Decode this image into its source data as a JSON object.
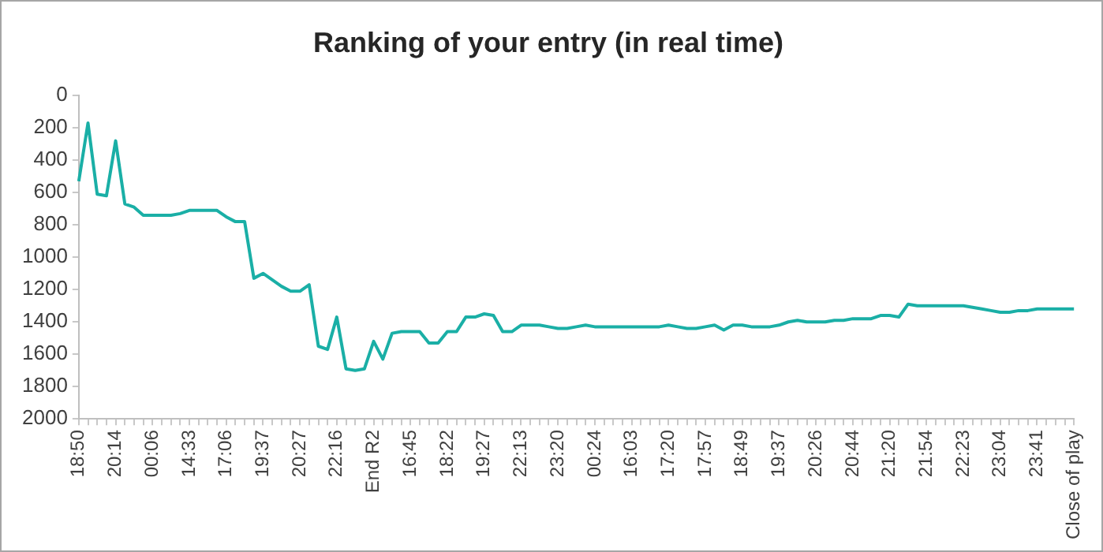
{
  "chart_data": {
    "type": "line",
    "title": "Ranking of your entry (in real time)",
    "categories": [
      "18:50",
      null,
      null,
      null,
      "20:14",
      null,
      null,
      null,
      "00:06",
      null,
      null,
      null,
      "14:33",
      null,
      null,
      null,
      "17:06",
      null,
      null,
      null,
      "19:37",
      null,
      null,
      null,
      "20:27",
      null,
      null,
      null,
      "22:16",
      null,
      null,
      null,
      "End R2",
      null,
      null,
      null,
      "16:45",
      null,
      null,
      null,
      "18:22",
      null,
      null,
      null,
      "19:27",
      null,
      null,
      null,
      "22:13",
      null,
      null,
      null,
      "23:20",
      null,
      null,
      null,
      "00:24",
      null,
      null,
      null,
      "16:03",
      null,
      null,
      null,
      "17:20",
      null,
      null,
      null,
      "17:57",
      null,
      null,
      null,
      "18:49",
      null,
      null,
      null,
      "19:37",
      null,
      null,
      null,
      "20:26",
      null,
      null,
      null,
      "20:44",
      null,
      null,
      null,
      "21:20",
      null,
      null,
      null,
      "21:54",
      null,
      null,
      null,
      "22:23",
      null,
      null,
      null,
      "23:04",
      null,
      null,
      null,
      "23:41",
      null,
      null,
      null,
      "Close of play"
    ],
    "series": [
      {
        "color": "#1aafa6",
        "values": [
          530,
          170,
          610,
          620,
          280,
          670,
          690,
          740,
          740,
          740,
          740,
          730,
          710,
          710,
          710,
          710,
          750,
          780,
          780,
          1130,
          1100,
          1140,
          1180,
          1210,
          1210,
          1170,
          1550,
          1570,
          1370,
          1690,
          1700,
          1690,
          1520,
          1630,
          1470,
          1460,
          1460,
          1460,
          1530,
          1530,
          1460,
          1460,
          1370,
          1370,
          1350,
          1360,
          1460,
          1460,
          1420,
          1420,
          1420,
          1430,
          1440,
          1440,
          1430,
          1420,
          1430,
          1430,
          1430,
          1430,
          1430,
          1430,
          1430,
          1430,
          1420,
          1430,
          1440,
          1440,
          1430,
          1420,
          1450,
          1420,
          1420,
          1430,
          1430,
          1430,
          1420,
          1400,
          1390,
          1400,
          1400,
          1400,
          1390,
          1390,
          1380,
          1380,
          1380,
          1360,
          1360,
          1370,
          1290,
          1300,
          1300,
          1300,
          1300,
          1300,
          1300,
          1310,
          1320,
          1330,
          1340,
          1340,
          1330,
          1330,
          1320,
          1320,
          1320,
          1320,
          1320
        ]
      }
    ],
    "ylim": [
      2000,
      0
    ],
    "yticks": [
      0,
      200,
      400,
      600,
      800,
      1000,
      1200,
      1400,
      1600,
      1800,
      2000
    ],
    "grid": false,
    "legend": false,
    "marker": "none",
    "line_style": "solid"
  }
}
